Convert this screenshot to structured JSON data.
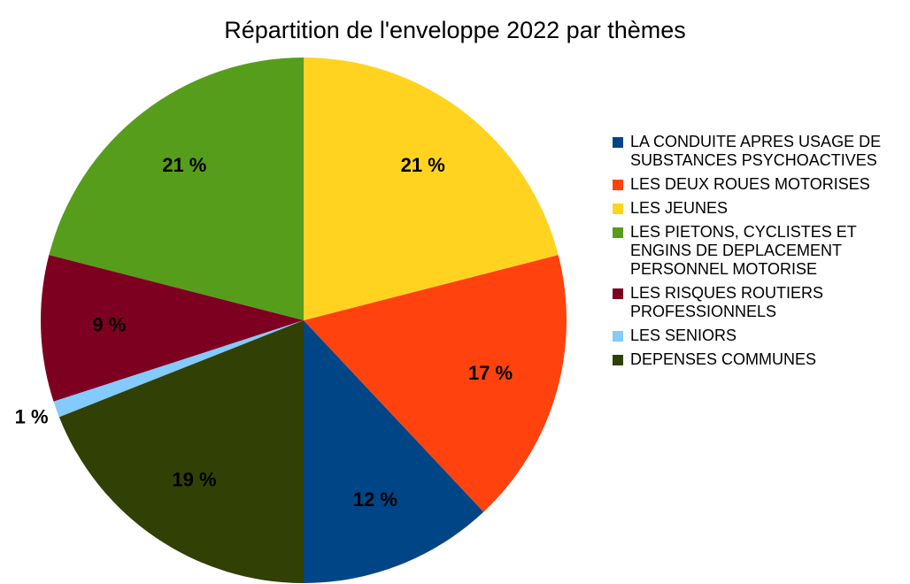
{
  "chart_data": {
    "type": "pie",
    "title": "Répartition de l'enveloppe 2022 par thèmes",
    "categories": [
      "LA CONDUITE APRES USAGE DE SUBSTANCES PSYCHOACTIVES",
      "LES DEUX ROUES MOTORISES",
      "LES JEUNES",
      "LES PIETONS, CYCLISTES ET ENGINS DE DEPLACEMENT PERSONNEL MOTORISE",
      "LES RISQUES ROUTIERS PROFESSIONNELS",
      "LES SENIORS",
      "DEPENSES COMMUNES"
    ],
    "values": [
      12,
      17,
      21,
      21,
      9,
      1,
      19
    ],
    "value_labels": [
      "12 %",
      "17 %",
      "21 %",
      "21 %",
      "9 %",
      "1 %",
      "19 %"
    ],
    "colors": [
      "#004586",
      "#ff420e",
      "#ffd320",
      "#579d1c",
      "#7e0021",
      "#83caff",
      "#314004"
    ],
    "legend": "right"
  }
}
